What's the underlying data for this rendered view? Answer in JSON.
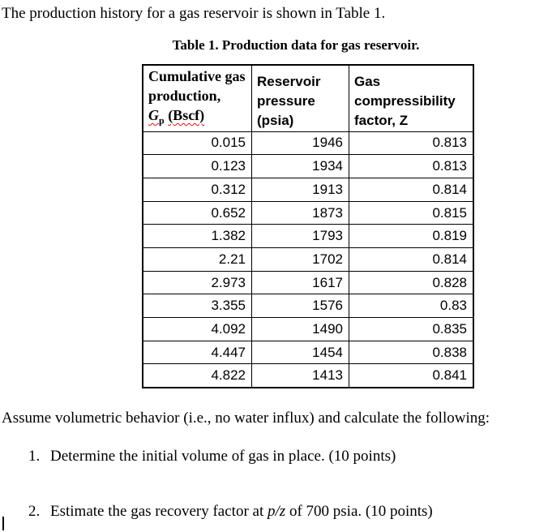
{
  "document": {
    "intro": "The production history for a gas reservoir is shown in Table 1.",
    "table_caption": "Table 1. Production data for gas reservoir.",
    "assume_text": "Assume volumetric behavior (i.e., no water influx) and calculate the following:",
    "questions": [
      {
        "number": "1.",
        "text": "Determine the initial volume of gas in place. (10 points)"
      },
      {
        "number": "2.",
        "text_before_italic": "Estimate the gas recovery factor at ",
        "italic": "p/z",
        "text_after_italic": " of 700 psia. (10 points)"
      }
    ]
  },
  "table": {
    "headers": {
      "col1_text": "Cumulative gas production,",
      "col1_symbol": "G",
      "col1_symbol_sub": "p",
      "col1_unit": "(Bscf)",
      "col2": "Reservoir pressure (psia)",
      "col3": "Gas compressibility factor, Z"
    },
    "rows": [
      {
        "gp": "0.015",
        "pressure": "1946",
        "z": "0.813"
      },
      {
        "gp": "0.123",
        "pressure": "1934",
        "z": "0.813"
      },
      {
        "gp": "0.312",
        "pressure": "1913",
        "z": "0.814"
      },
      {
        "gp": "0.652",
        "pressure": "1873",
        "z": "0.815"
      },
      {
        "gp": "1.382",
        "pressure": "1793",
        "z": "0.819"
      },
      {
        "gp": "2.21",
        "pressure": "1702",
        "z": "0.814"
      },
      {
        "gp": "2.973",
        "pressure": "1617",
        "z": "0.828"
      },
      {
        "gp": "3.355",
        "pressure": "1576",
        "z": "0.83"
      },
      {
        "gp": "4.092",
        "pressure": "1490",
        "z": "0.835"
      },
      {
        "gp": "4.447",
        "pressure": "1454",
        "z": "0.838"
      },
      {
        "gp": "4.822",
        "pressure": "1413",
        "z": "0.841"
      }
    ]
  },
  "colors": {
    "text": "#000000",
    "border": "#000000",
    "background": "#ffffff",
    "spellcheck_underline": "#e01010"
  }
}
